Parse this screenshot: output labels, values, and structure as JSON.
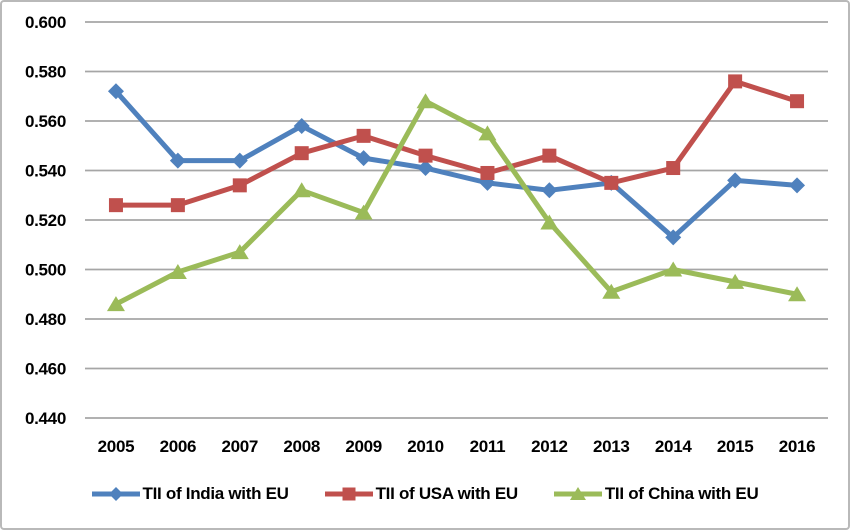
{
  "chart_data": {
    "type": "line",
    "title": "",
    "xlabel": "",
    "ylabel": "",
    "categories": [
      "2005",
      "2006",
      "2007",
      "2008",
      "2009",
      "2010",
      "2011",
      "2012",
      "2013",
      "2014",
      "2015",
      "2016"
    ],
    "series": [
      {
        "key": "india",
        "name": "TII of India with EU",
        "color": "#4F81BD",
        "marker": "diamond",
        "values": [
          0.572,
          0.544,
          0.544,
          0.558,
          0.545,
          0.541,
          0.535,
          0.532,
          0.535,
          0.513,
          0.536,
          0.534
        ]
      },
      {
        "key": "usa",
        "name": "TII of USA with EU",
        "color": "#C0504D",
        "marker": "square",
        "values": [
          0.526,
          0.526,
          0.534,
          0.547,
          0.554,
          0.546,
          0.539,
          0.546,
          0.535,
          0.541,
          0.576,
          0.568
        ]
      },
      {
        "key": "china",
        "name": "TII of China with EU",
        "color": "#9BBB59",
        "marker": "triangle",
        "values": [
          0.486,
          0.499,
          0.507,
          0.532,
          0.523,
          0.568,
          0.555,
          0.519,
          0.491,
          0.5,
          0.495,
          0.49
        ]
      }
    ],
    "ylim": [
      0.44,
      0.6
    ],
    "ytick_step": 0.02,
    "ytick_labels": [
      "0.600",
      "0.580",
      "0.560",
      "0.540",
      "0.520",
      "0.500",
      "0.480",
      "0.460",
      "0.440"
    ],
    "grid": "horizontal",
    "gridline_color": "#A6A6A6",
    "axis_text_color": "#000000",
    "background_color": "#FFFFFF",
    "frame_border_color": "#B9B9B9",
    "legend_position": "bottom"
  }
}
